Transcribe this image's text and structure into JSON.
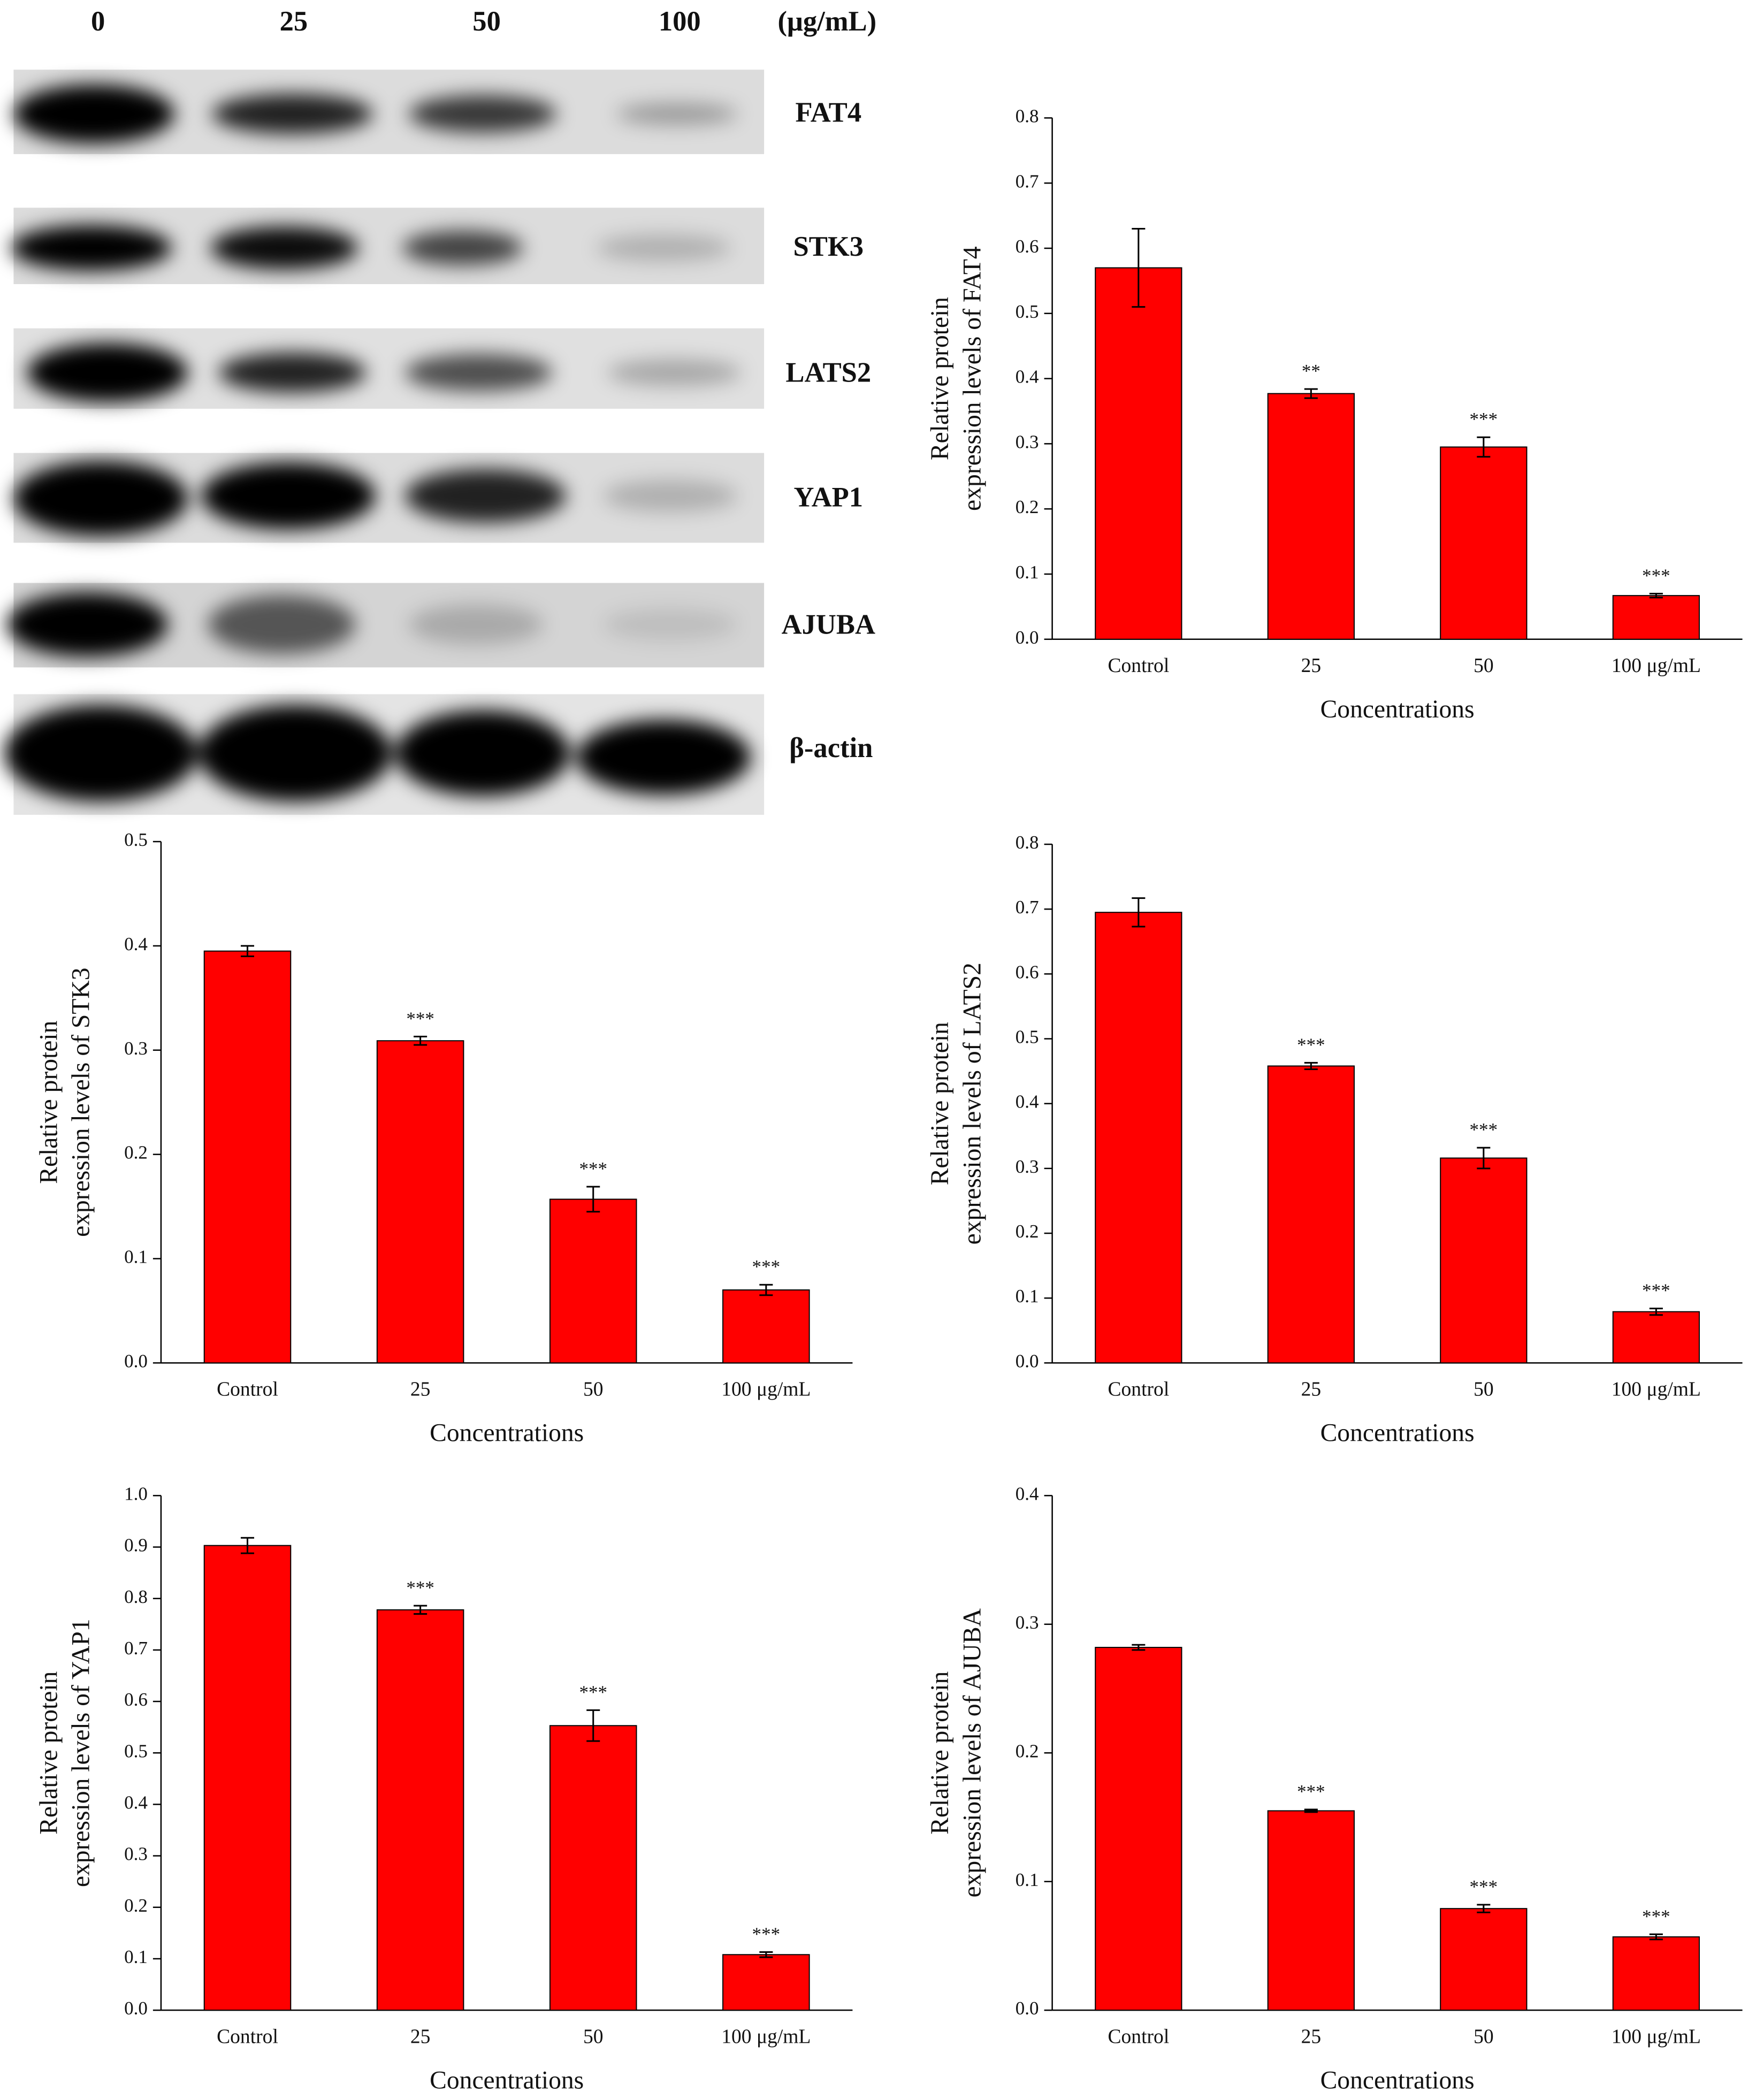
{
  "blot": {
    "concentrations": [
      "0",
      "25",
      "50",
      "100"
    ],
    "unit": "(μg/mL)",
    "proteins": [
      "FAT4",
      "STK3",
      "LATS2",
      "YAP1",
      "AJUBA",
      "β-actin"
    ]
  },
  "chart_data": [
    {
      "type": "bar",
      "ylabel": [
        "Relative protein",
        "expression levels of FAT4"
      ],
      "xlabel": "Concentrations",
      "categories": [
        "Control",
        "25",
        "50",
        "100 μg/mL"
      ],
      "values": [
        0.57,
        0.377,
        0.295,
        0.067
      ],
      "errors": [
        0.06,
        0.007,
        0.015,
        0.003
      ],
      "annotations": [
        null,
        "**",
        "***",
        "***"
      ],
      "color": "#ff0000",
      "ylim": [
        0,
        0.8
      ],
      "yticks": [
        {
          "value": 0,
          "label": "0.0"
        },
        0.1,
        0.2,
        0.3,
        0.4,
        0.5,
        0.6,
        0.7,
        0.8
      ]
    },
    {
      "type": "bar",
      "ylabel": [
        "Relative protein",
        "expression levels of STK3"
      ],
      "xlabel": "Concentrations",
      "categories": [
        "Control",
        "25",
        "50",
        "100 μg/mL"
      ],
      "values": [
        0.395,
        0.309,
        0.157,
        0.07
      ],
      "errors": [
        0.005,
        0.004,
        0.012,
        0.005
      ],
      "annotations": [
        null,
        "***",
        "***",
        "***"
      ],
      "color": "#ff0000",
      "ylim": [
        0,
        0.5
      ],
      "yticks": [
        {
          "value": 0,
          "label": "0.0"
        },
        0.1,
        0.2,
        0.3,
        0.4,
        0.5
      ]
    },
    {
      "type": "bar",
      "ylabel": [
        "Relative protein",
        "expression levels of LATS2"
      ],
      "xlabel": "Concentrations",
      "categories": [
        "Control",
        "25",
        "50",
        "100 μg/mL"
      ],
      "values": [
        0.695,
        0.458,
        0.316,
        0.079
      ],
      "errors": [
        0.022,
        0.005,
        0.016,
        0.005
      ],
      "annotations": [
        null,
        "***",
        "***",
        "***"
      ],
      "color": "#ff0000",
      "ylim": [
        0,
        0.8
      ],
      "yticks": [
        {
          "value": 0,
          "label": "0.0"
        },
        0.1,
        0.2,
        0.3,
        0.4,
        0.5,
        0.6,
        0.7,
        0.8
      ]
    },
    {
      "type": "bar",
      "ylabel": [
        "Relative protein",
        "expression levels of YAP1"
      ],
      "xlabel": "Concentrations",
      "categories": [
        "Control",
        "25",
        "50",
        "100 μg/mL"
      ],
      "values": [
        0.903,
        0.778,
        0.553,
        0.108
      ],
      "errors": [
        0.015,
        0.008,
        0.03,
        0.005
      ],
      "annotations": [
        null,
        "***",
        "***",
        "***"
      ],
      "color": "#ff0000",
      "ylim": [
        0,
        1
      ],
      "yticks": [
        {
          "value": 0,
          "label": "0.0"
        },
        0.1,
        0.2,
        0.3,
        0.4,
        0.5,
        0.6,
        0.7,
        0.8,
        0.9,
        {
          "value": 1,
          "label": "1.0"
        }
      ]
    },
    {
      "type": "bar",
      "ylabel": [
        "Relative protein",
        "expression levels of AJUBA"
      ],
      "xlabel": "Concentrations",
      "categories": [
        "Control",
        "25",
        "50",
        "100 μg/mL"
      ],
      "values": [
        0.282,
        0.155,
        0.079,
        0.057
      ],
      "errors": [
        0.002,
        0.001,
        0.003,
        0.002
      ],
      "annotations": [
        null,
        "***",
        "***",
        "***"
      ],
      "color": "#ff0000",
      "ylim": [
        0,
        0.4
      ],
      "yticks": [
        {
          "value": 0,
          "label": "0.0"
        },
        0.1,
        0.2,
        0.3,
        0.4
      ]
    }
  ]
}
